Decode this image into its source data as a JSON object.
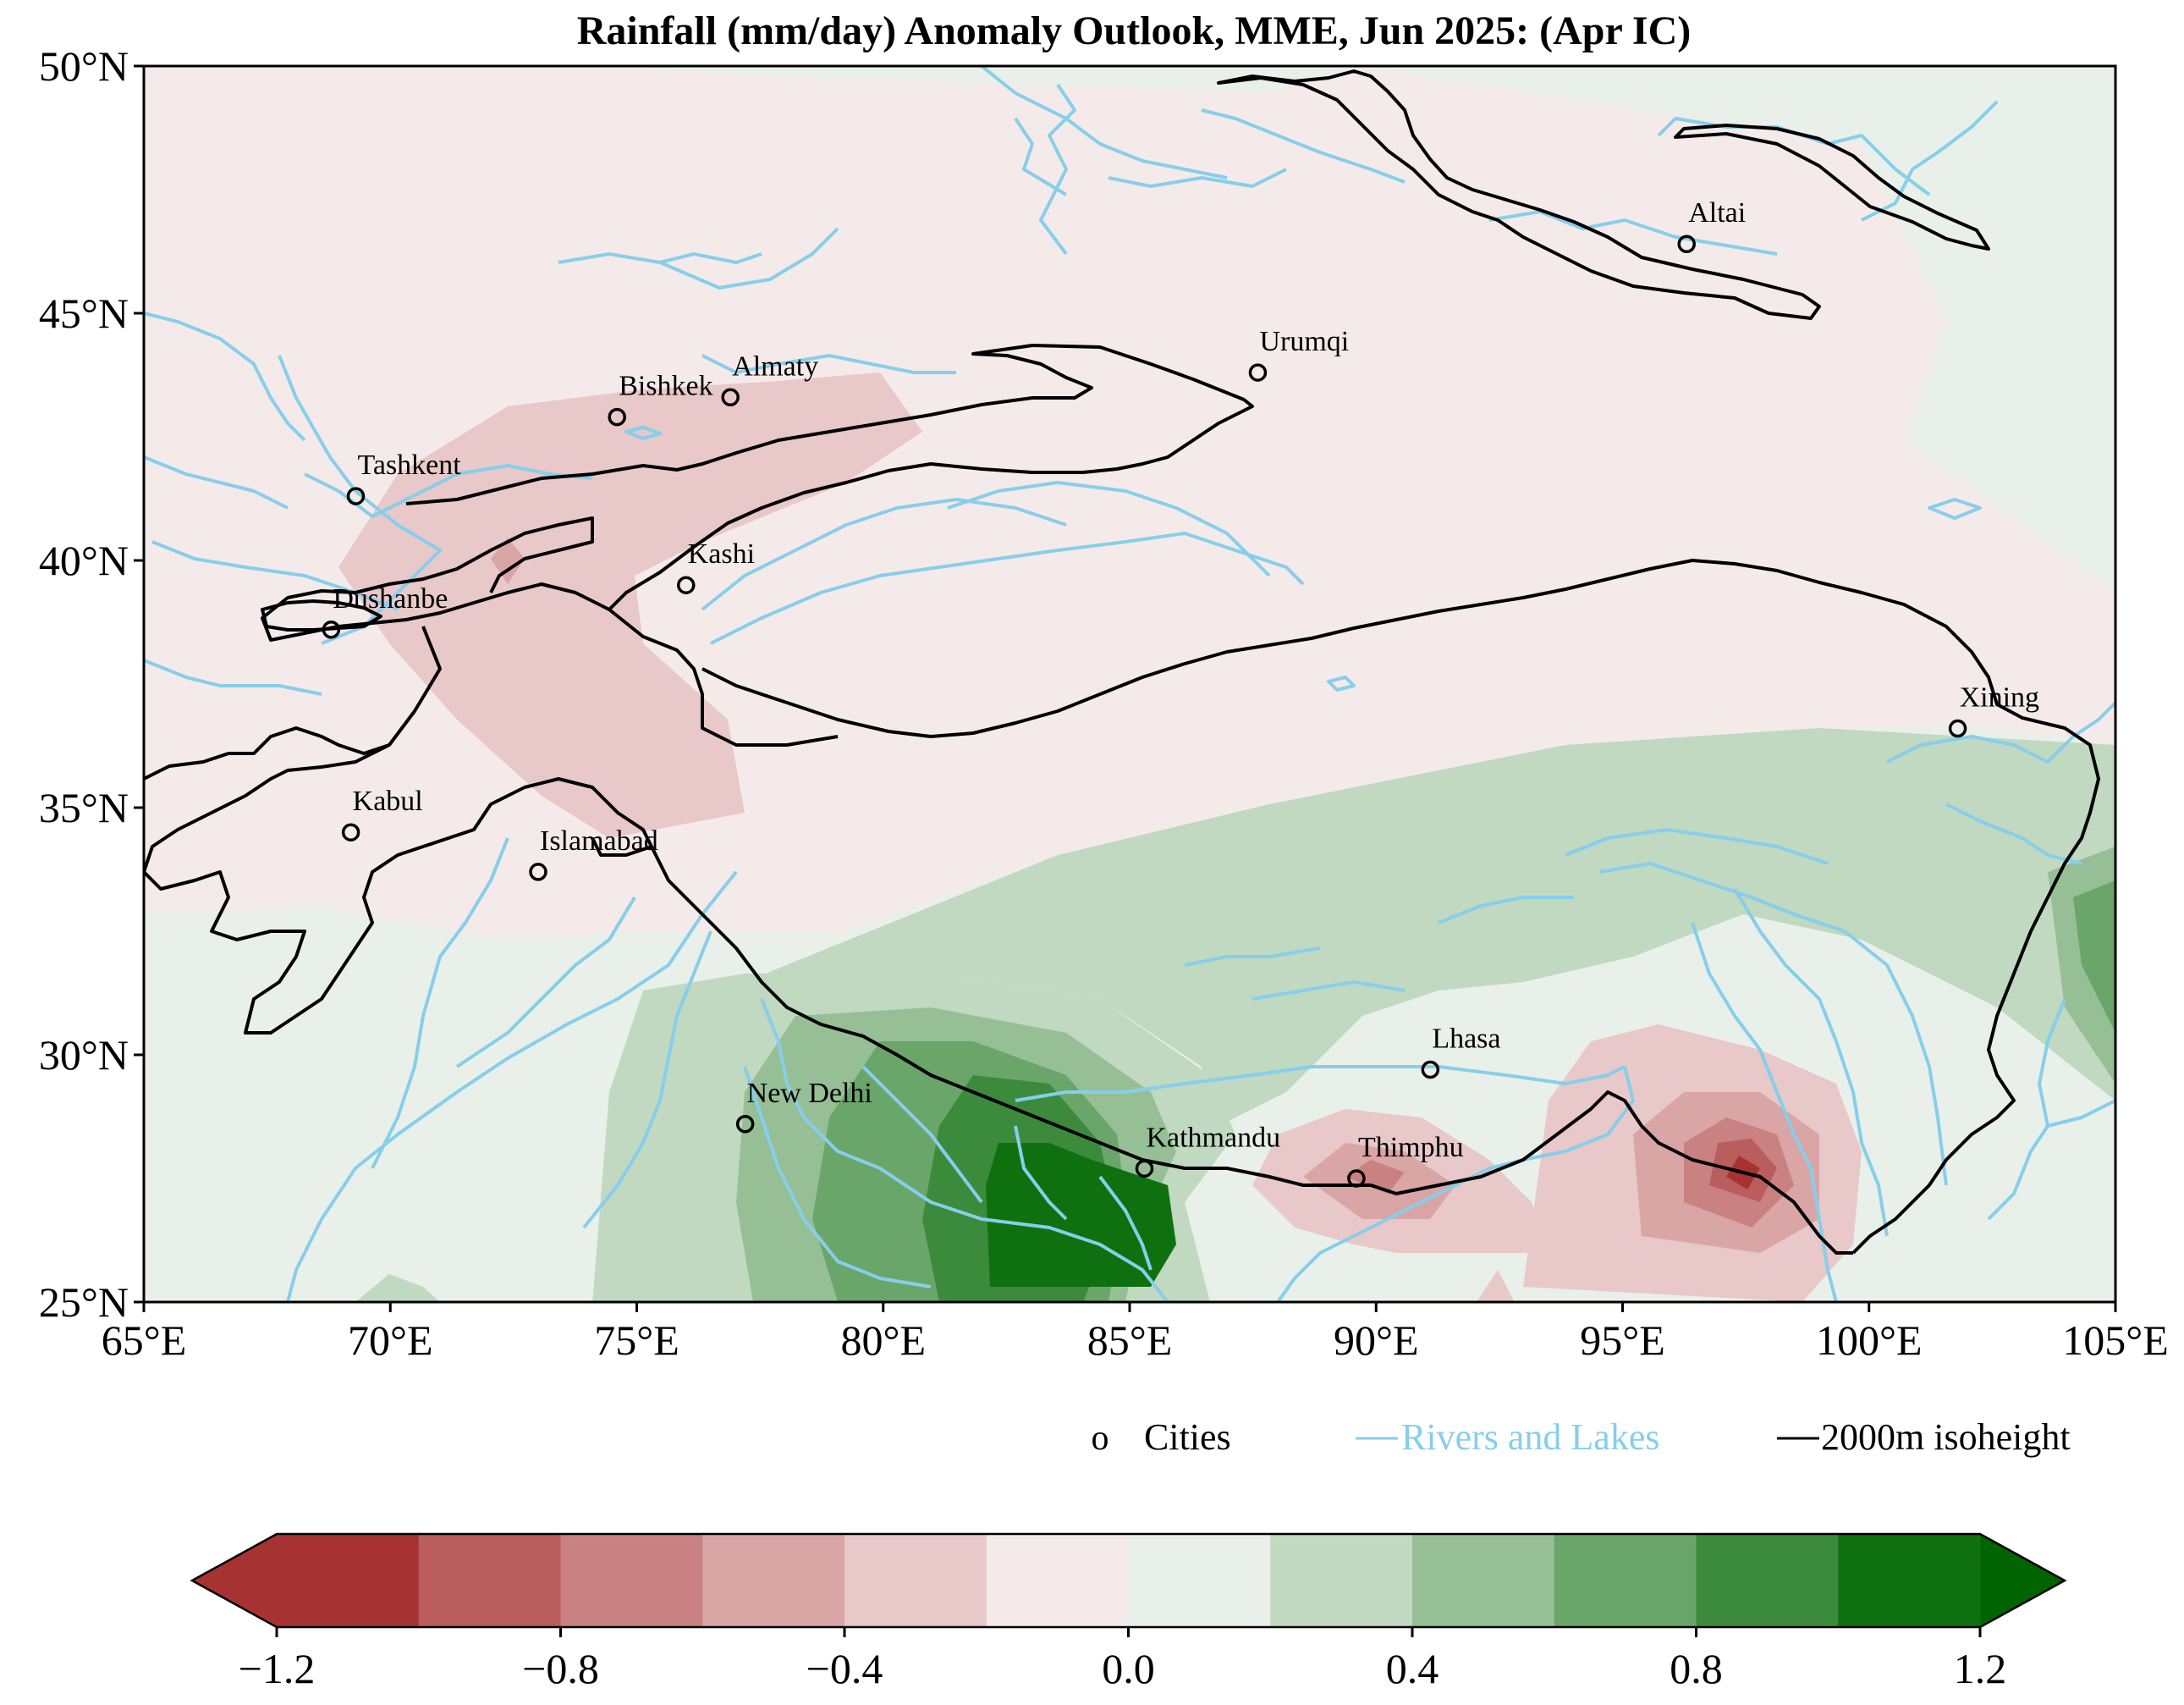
{
  "title": "Rainfall (mm/day) Anomaly Outlook, MME, Jun  2025:  (Apr IC)",
  "x_axis": {
    "ticks": [
      "65°E",
      "70°E",
      "75°E",
      "80°E",
      "85°E",
      "90°E",
      "95°E",
      "100°E",
      "105°E"
    ],
    "range": [
      65,
      105
    ]
  },
  "y_axis": {
    "ticks": [
      "25°N",
      "30°N",
      "35°N",
      "40°N",
      "45°N",
      "50°N"
    ],
    "range": [
      25,
      50
    ]
  },
  "cities": [
    {
      "name": "Altai",
      "lon": 96.3,
      "lat": 46.4
    },
    {
      "name": "Urumqi",
      "lon": 87.6,
      "lat": 43.8
    },
    {
      "name": "Almaty",
      "lon": 76.9,
      "lat": 43.3
    },
    {
      "name": "Bishkek",
      "lon": 74.6,
      "lat": 42.9
    },
    {
      "name": "Tashkent",
      "lon": 69.3,
      "lat": 41.3
    },
    {
      "name": "Kashi",
      "lon": 76.0,
      "lat": 39.5
    },
    {
      "name": "Dushanbe",
      "lon": 68.8,
      "lat": 38.6
    },
    {
      "name": "Xining",
      "lon": 101.8,
      "lat": 36.6
    },
    {
      "name": "Kabul",
      "lon": 69.2,
      "lat": 34.5
    },
    {
      "name": "Islamabad",
      "lon": 73.0,
      "lat": 33.7
    },
    {
      "name": "Lhasa",
      "lon": 91.1,
      "lat": 29.7
    },
    {
      "name": "New Delhi",
      "lon": 77.2,
      "lat": 28.6
    },
    {
      "name": "Kathmandu",
      "lon": 85.3,
      "lat": 27.7
    },
    {
      "name": "Thimphu",
      "lon": 89.6,
      "lat": 27.5
    }
  ],
  "legend": {
    "cities_marker": "o",
    "cities_label": "Cities",
    "rivers_label": "Rivers and Lakes",
    "isoheight_label": "2000m isoheight"
  },
  "colorbar": {
    "levels": [
      -1.2,
      -1.0,
      -0.8,
      -0.6,
      -0.4,
      -0.2,
      0.0,
      0.2,
      0.4,
      0.6,
      0.8,
      1.0,
      1.2
    ],
    "tick_labels": [
      "−1.2",
      "−0.8",
      "−0.4",
      "0.0",
      "0.4",
      "0.8",
      "1.2"
    ],
    "colors": [
      "#a63232",
      "#b95d5d",
      "#c98181",
      "#d9a5a5",
      "#e8c8c8",
      "#f5eaea",
      "#e9f0e9",
      "#c0d9c0",
      "#96bf96",
      "#6aa56a",
      "#3c8b3c",
      "#0f700f"
    ],
    "under_color": "#a63232",
    "over_color": "#006400",
    "extend": "both"
  },
  "colors": {
    "river": "#87ceeb",
    "isoheight": "#000000",
    "background_pos": "#f5eaea"
  }
}
